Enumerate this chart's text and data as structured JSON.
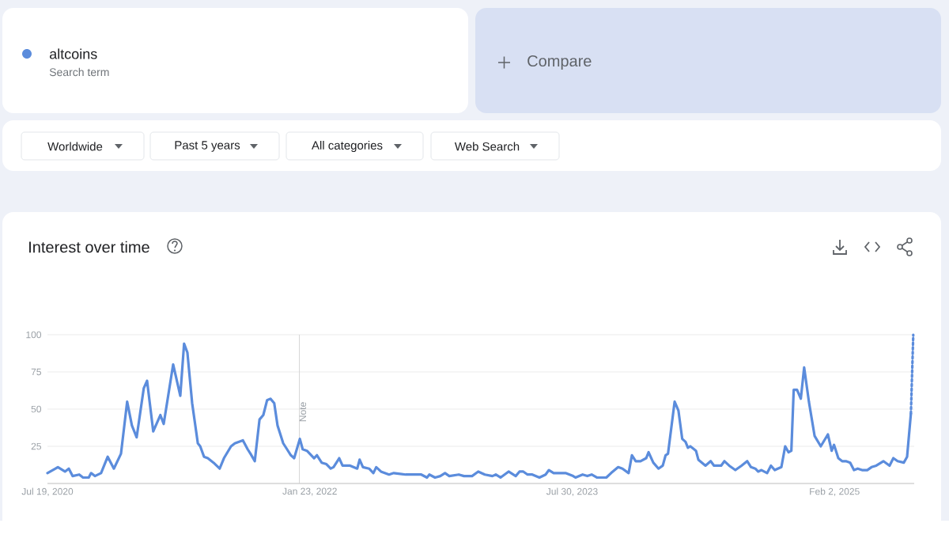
{
  "chart_data": {
    "type": "line",
    "title": "Interest over time",
    "annotations": [
      "Search term",
      "Compare",
      "Worldwide",
      "Past 5 years",
      "All categories",
      "Web Search"
    ],
    "legend": "top left",
    "grid": "y",
    "xlim": [
      "2020-07-19",
      "2025-07-20"
    ],
    "xticks": [
      {
        "value": "2020-07-19",
        "label": "Jul 19, 2020"
      },
      {
        "value": "2022-01-23",
        "label": "Jan 23, 2022"
      },
      {
        "value": "2023-07-30",
        "label": "Jul 30, 2023"
      },
      {
        "value": "2025-02-02",
        "label": "Feb 2, 2025"
      }
    ],
    "ylim": [
      0,
      100
    ],
    "yticks": [
      25,
      50,
      75,
      100
    ],
    "ref_lines": [
      {
        "axis": "x",
        "value": "2022-01-01",
        "label": "Note",
        "color": "#cccccc"
      }
    ],
    "series": [
      {
        "name": "altcoins",
        "color": "#5b8cdc",
        "line_style": "solid",
        "x": [
          "2020-07-19",
          "2020-08-05",
          "2020-08-10",
          "2020-08-25",
          "2020-09-02",
          "2020-09-10",
          "2020-09-24",
          "2020-10-02",
          "2020-10-14",
          "2020-10-19",
          "2020-10-27",
          "2020-11-09",
          "2020-11-23",
          "2020-12-06",
          "2020-12-21",
          "2021-01-03",
          "2021-01-13",
          "2021-01-23",
          "2021-02-07",
          "2021-02-14",
          "2021-02-27",
          "2021-03-14",
          "2021-03-21",
          "2021-04-10",
          "2021-04-25",
          "2021-05-03",
          "2021-05-10",
          "2021-05-20",
          "2021-06-01",
          "2021-06-06",
          "2021-06-14",
          "2021-06-22",
          "2021-07-04",
          "2021-07-17",
          "2021-07-26",
          "2021-08-10",
          "2021-08-18",
          "2021-09-04",
          "2021-09-14",
          "2021-09-20",
          "2021-09-29",
          "2021-10-09",
          "2021-10-17",
          "2021-10-25",
          "2021-11-01",
          "2021-11-09",
          "2021-11-16",
          "2021-11-28",
          "2021-12-06",
          "2021-12-14",
          "2021-12-21",
          "2022-01-02",
          "2022-01-08",
          "2022-01-17",
          "2022-02-01",
          "2022-02-07",
          "2022-02-17",
          "2022-02-27",
          "2022-03-08",
          "2022-03-14",
          "2022-03-26",
          "2022-04-02",
          "2022-04-18",
          "2022-05-03",
          "2022-05-08",
          "2022-05-15",
          "2022-05-28",
          "2022-06-06",
          "2022-06-12",
          "2022-06-22",
          "2022-07-09",
          "2022-07-19",
          "2022-08-13",
          "2022-09-15",
          "2022-09-27",
          "2022-10-02",
          "2022-10-14",
          "2022-10-25",
          "2022-11-04",
          "2022-11-13",
          "2022-12-03",
          "2022-12-14",
          "2022-12-31",
          "2023-01-13",
          "2023-01-27",
          "2023-02-12",
          "2023-02-19",
          "2023-03-01",
          "2023-03-18",
          "2023-04-02",
          "2023-04-10",
          "2023-04-18",
          "2023-04-27",
          "2023-05-07",
          "2023-05-22",
          "2023-06-04",
          "2023-06-11",
          "2023-06-21",
          "2023-07-16",
          "2023-08-01",
          "2023-08-06",
          "2023-08-21",
          "2023-08-31",
          "2023-09-09",
          "2023-09-20",
          "2023-10-02",
          "2023-10-10",
          "2023-10-20",
          "2023-11-04",
          "2023-11-13",
          "2023-11-26",
          "2023-12-03",
          "2023-12-11",
          "2023-12-21",
          "2024-01-02",
          "2024-01-07",
          "2024-01-17",
          "2024-01-28",
          "2024-02-06",
          "2024-02-12",
          "2024-02-17",
          "2024-03-02",
          "2024-03-10",
          "2024-03-18",
          "2024-03-25",
          "2024-03-30",
          "2024-04-04",
          "2024-04-12",
          "2024-04-16",
          "2024-04-21",
          "2024-05-06",
          "2024-05-17",
          "2024-05-24",
          "2024-06-08",
          "2024-06-15",
          "2024-06-25",
          "2024-07-08",
          "2024-07-21",
          "2024-08-02",
          "2024-08-10",
          "2024-08-19",
          "2024-08-25",
          "2024-09-01",
          "2024-09-13",
          "2024-09-21",
          "2024-09-29",
          "2024-10-13",
          "2024-10-21",
          "2024-10-28",
          "2024-11-03",
          "2024-11-08",
          "2024-11-15",
          "2024-11-23",
          "2024-11-30",
          "2024-12-10",
          "2024-12-22",
          "2025-01-04",
          "2025-01-19",
          "2025-01-27",
          "2025-02-01",
          "2025-02-10",
          "2025-02-18",
          "2025-02-26",
          "2025-03-07",
          "2025-03-15",
          "2025-03-23",
          "2025-04-01",
          "2025-04-12",
          "2025-04-21",
          "2025-05-01",
          "2025-05-16",
          "2025-05-29",
          "2025-06-06",
          "2025-06-15",
          "2025-06-28",
          "2025-07-05",
          "2025-07-13"
        ],
        "values": [
          7,
          10,
          11,
          8,
          10,
          5,
          6,
          4,
          4,
          7,
          5,
          7,
          18,
          10,
          20,
          55,
          39,
          31,
          64,
          69,
          35,
          46,
          40,
          80,
          59,
          94,
          88,
          54,
          27,
          25,
          18,
          17,
          14,
          10,
          17,
          25,
          27,
          29,
          23,
          20,
          15,
          43,
          46,
          56,
          57,
          54,
          39,
          27,
          23,
          19,
          17,
          30,
          23,
          22,
          17,
          19,
          14,
          13,
          10,
          11,
          17,
          12,
          12,
          10,
          16,
          11,
          10,
          7,
          11,
          8,
          6,
          7,
          6,
          6,
          4,
          6,
          4,
          5,
          7,
          5,
          6,
          5,
          5,
          8,
          6,
          5,
          6,
          4,
          8,
          5,
          8,
          8,
          6,
          6,
          4,
          6,
          9,
          7,
          7,
          5,
          4,
          6,
          5,
          6,
          4,
          4,
          4,
          7,
          11,
          10,
          7,
          19,
          15,
          15,
          17,
          21,
          14,
          10,
          12,
          19,
          20,
          55,
          49,
          30,
          28,
          24,
          25,
          23,
          22,
          16,
          12,
          15,
          12,
          12,
          15,
          12,
          9,
          12,
          15,
          11,
          10,
          8,
          9,
          7,
          12,
          9,
          11,
          25,
          21,
          22,
          63,
          63,
          57,
          78,
          55,
          32,
          25,
          33,
          22,
          26,
          17,
          15,
          15,
          14,
          9,
          10,
          9,
          9,
          11,
          12,
          15,
          12,
          17,
          15,
          14,
          18,
          47
        ]
      },
      {
        "color": "#5b8cdc",
        "line_style": "dotted",
        "x": [
          "2025-07-13",
          "2025-07-18"
        ],
        "values": [
          47,
          100
        ]
      }
    ]
  }
}
